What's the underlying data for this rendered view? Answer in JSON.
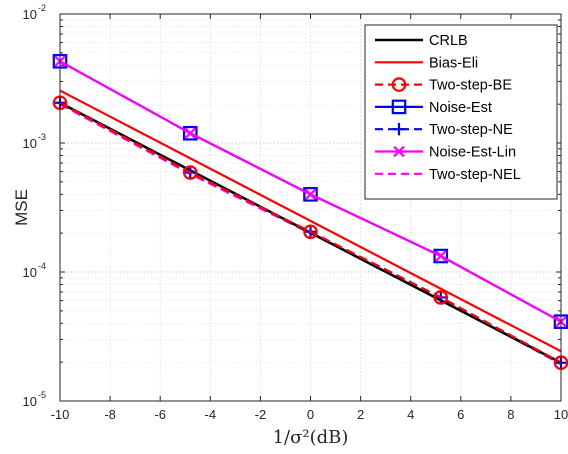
{
  "chart_data": {
    "type": "line",
    "title": "",
    "xlabel": "1/σ²(dB)",
    "ylabel": "MSE",
    "yscale": "log",
    "xlim": [
      -10,
      10
    ],
    "ylim": [
      1e-05,
      0.01
    ],
    "x_ticks": [
      -10,
      -8,
      -6,
      -4,
      -2,
      0,
      2,
      4,
      6,
      8,
      10
    ],
    "y_ticks": [
      {
        "value": 1e-05,
        "base": "10",
        "exp": "-5"
      },
      {
        "value": 0.0001,
        "base": "10",
        "exp": "-4"
      },
      {
        "value": 0.001,
        "base": "10",
        "exp": "-3"
      },
      {
        "value": 0.01,
        "base": "10",
        "exp": "-2"
      }
    ],
    "grid": true,
    "legend_position": "top-right",
    "series": [
      {
        "name": "CRLB",
        "color": "#000000",
        "dash": "solid",
        "marker": "none",
        "x": [
          -10,
          10
        ],
        "y": [
          0.00205,
          1.98e-05
        ]
      },
      {
        "name": "Bias-Eli",
        "color": "#ff0000",
        "dash": "solid",
        "marker": "none",
        "x": [
          -10,
          10
        ],
        "y": [
          0.00255,
          2.43e-05
        ]
      },
      {
        "name": "Two-step-BE",
        "color": "#ff0000",
        "dash": "dashed",
        "marker": "circle",
        "x": [
          -10,
          -4.8,
          0,
          5.2,
          10
        ],
        "y": [
          0.00205,
          0.00059,
          0.000205,
          6.35e-05,
          1.98e-05
        ]
      },
      {
        "name": "Noise-Est",
        "color": "#0000ff",
        "dash": "solid",
        "marker": "square",
        "x": [
          -10,
          -4.8,
          0,
          5.2,
          10
        ],
        "y": [
          0.0043,
          0.00119,
          0.0004,
          0.000133,
          4.12e-05
        ]
      },
      {
        "name": "Two-step-NE",
        "color": "#0000ff",
        "dash": "dashed",
        "marker": "plus",
        "x": [
          -10,
          -4.8,
          0,
          5.2,
          10
        ],
        "y": [
          0.00205,
          0.00059,
          0.000205,
          6.35e-05,
          1.98e-05
        ]
      },
      {
        "name": "Noise-Est-Lin",
        "color": "#ff00ff",
        "dash": "solid",
        "marker": "x",
        "x": [
          -10,
          -4.8,
          0,
          5.2,
          10
        ],
        "y": [
          0.0043,
          0.00119,
          0.0004,
          0.000133,
          4.12e-05
        ]
      },
      {
        "name": "Two-step-NEL",
        "color": "#ff00ff",
        "dash": "dashed",
        "marker": "none",
        "x": [
          -10,
          -4.8,
          0,
          5.2,
          10
        ],
        "y": [
          0.002,
          0.000575,
          0.0002,
          6.2e-05,
          1.93e-05
        ]
      }
    ]
  }
}
